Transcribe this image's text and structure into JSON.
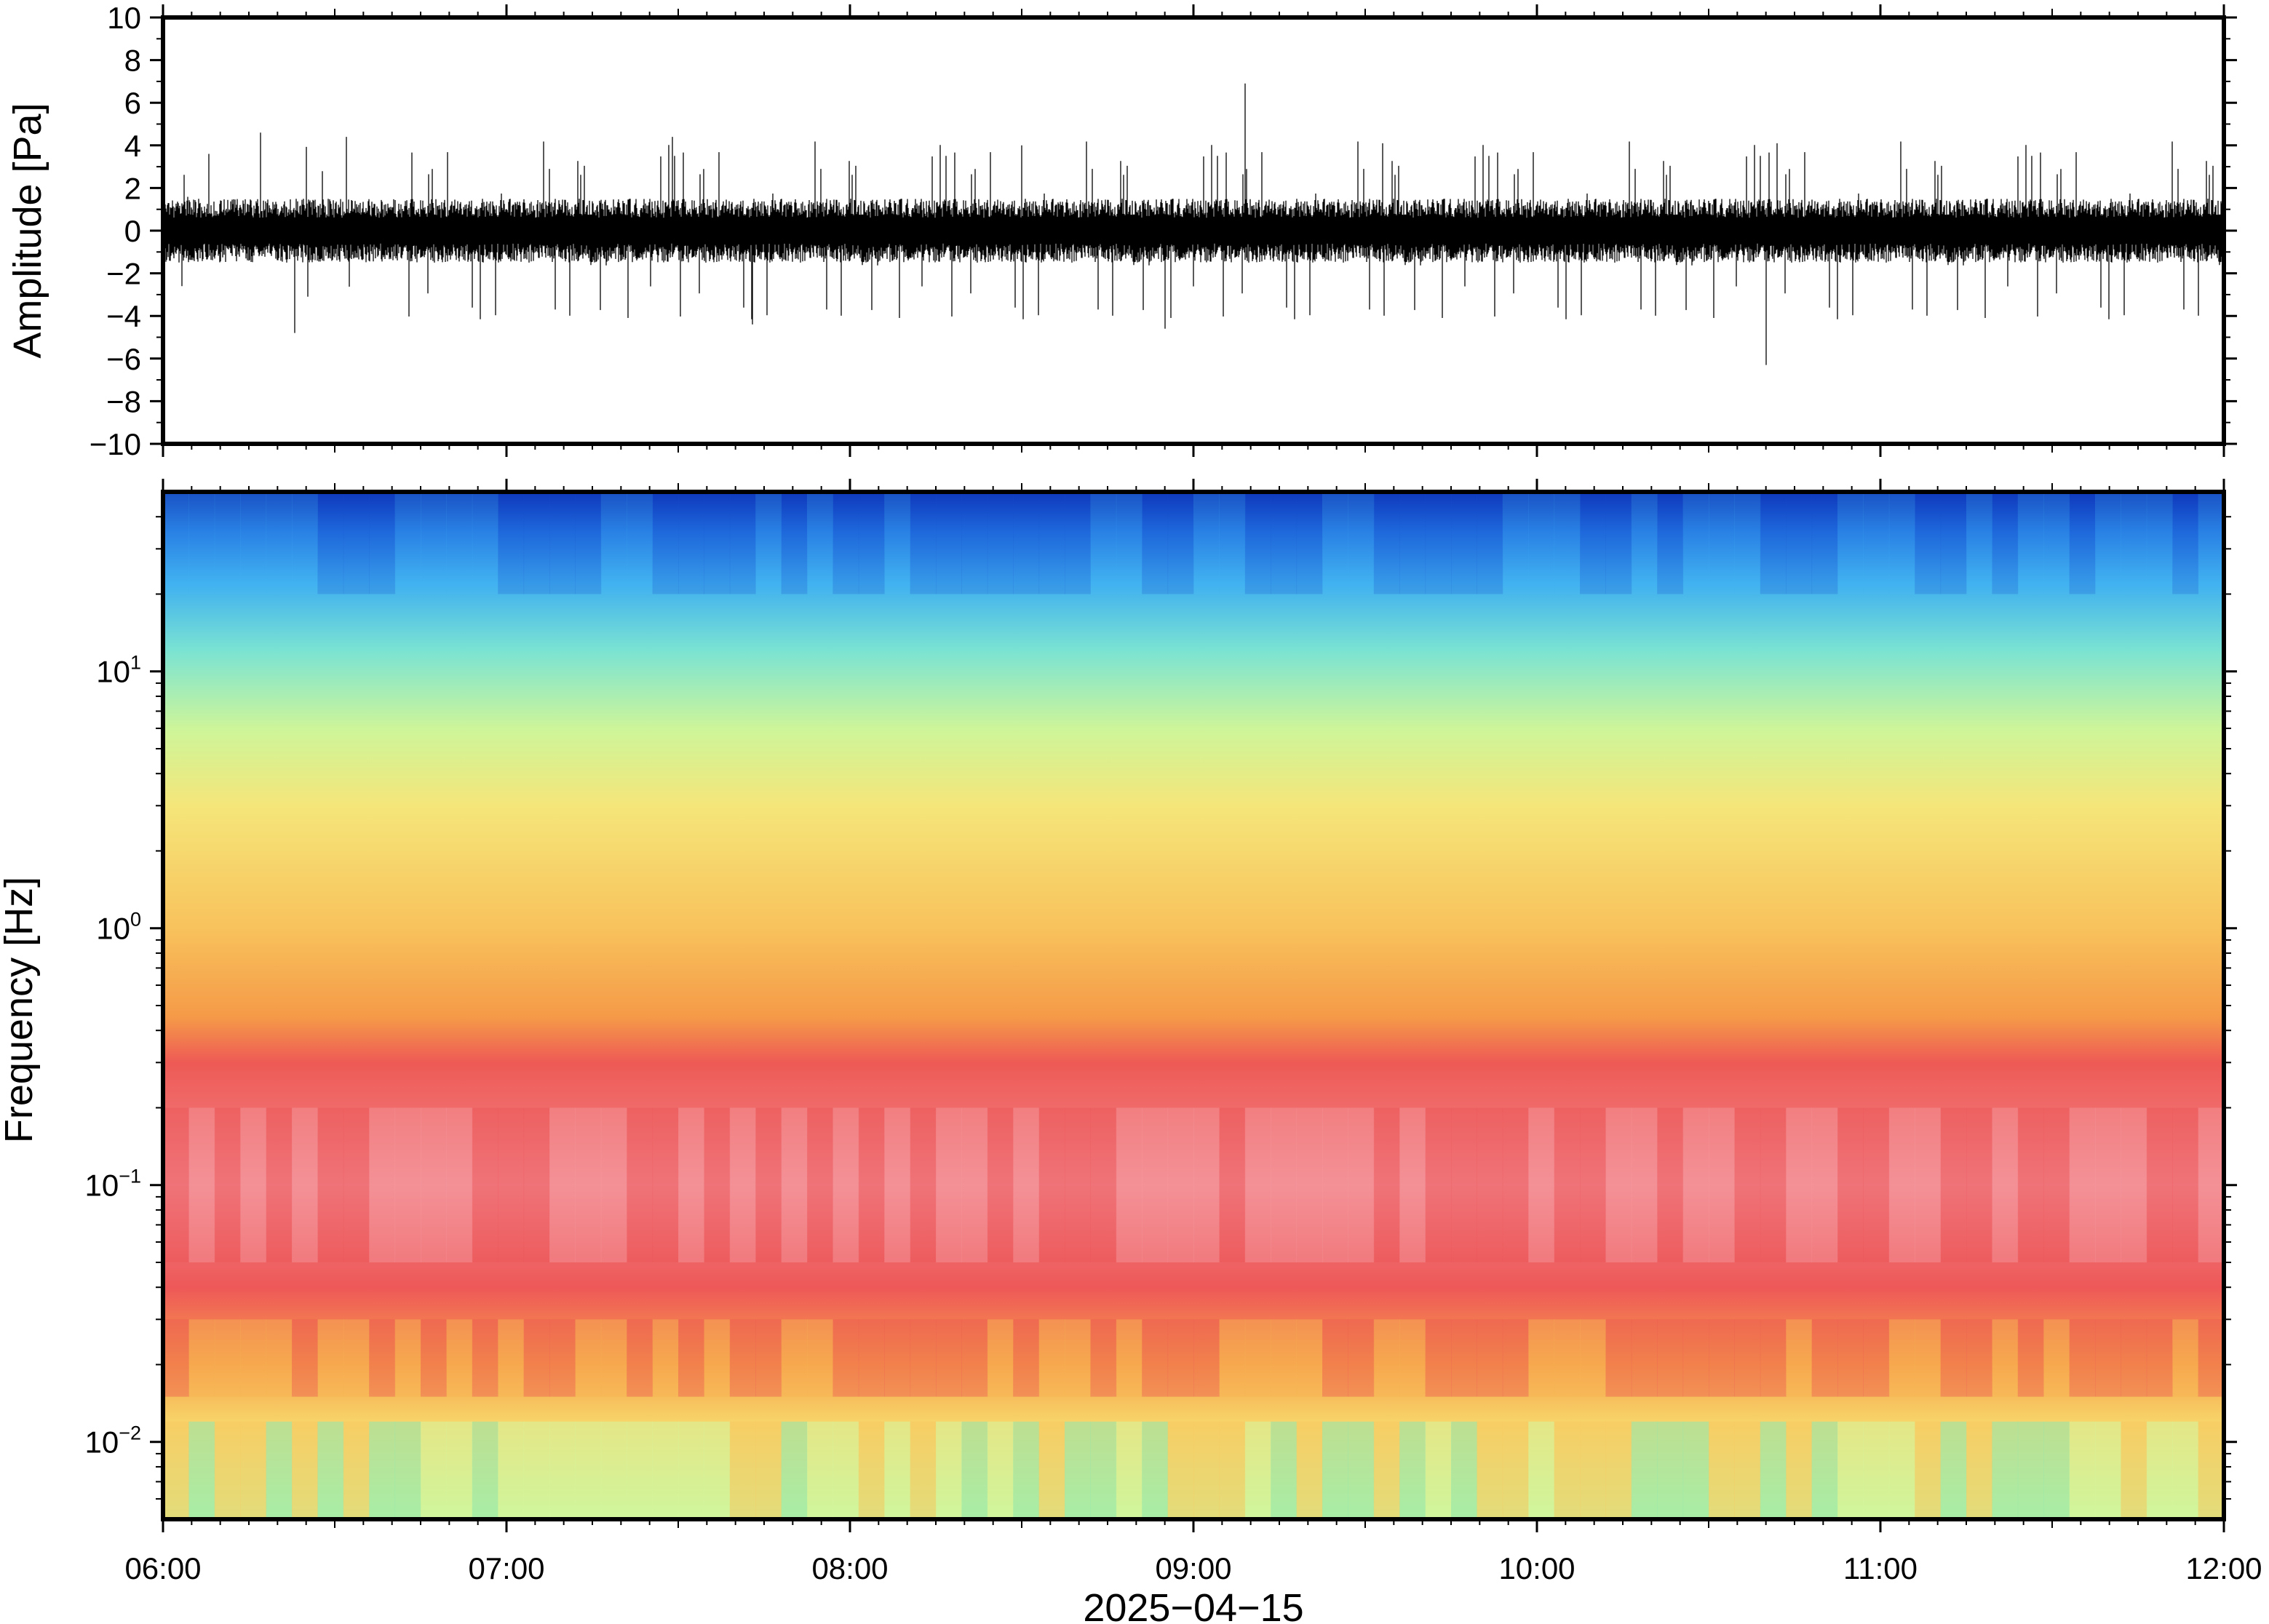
{
  "chart_data": [
    {
      "type": "line",
      "ylabel": "Amplitude [Pa]",
      "ylim": [
        -10,
        10
      ],
      "yticks": [
        "10",
        "8",
        "6",
        "4",
        "2",
        "0",
        "−2",
        "−4",
        "−6",
        "−8",
        "−10"
      ],
      "xlim": [
        "06:00",
        "12:00"
      ],
      "grid": false,
      "series": [
        {
          "color": "#000000",
          "envelope_peaks": [
            {
              "time": "06:08",
              "value": 3.6
            },
            {
              "time": "06:17",
              "value": 4.6
            },
            {
              "time": "06:23",
              "value": -4.8
            },
            {
              "time": "06:32",
              "value": 4.4
            },
            {
              "time": "07:29",
              "value": 4.4
            },
            {
              "time": "07:43",
              "value": -4.4
            },
            {
              "time": "08:30",
              "value": 4.0
            },
            {
              "time": "08:55",
              "value": -4.6
            },
            {
              "time": "09:09",
              "value": 6.9
            },
            {
              "time": "09:33",
              "value": 4.1
            },
            {
              "time": "10:40",
              "value": -6.3
            },
            {
              "time": "10:42",
              "value": 4.1
            }
          ]
        }
      ]
    },
    {
      "type": "heatmap",
      "ylabel": "Frequency [Hz]",
      "xlabel": "2025−04−15",
      "yscale": "log",
      "ylim": [
        0.005,
        50
      ],
      "yticks": [
        {
          "base": "10",
          "exp": "1",
          "value": 10
        },
        {
          "base": "10",
          "exp": "0",
          "value": 1
        },
        {
          "base": "10",
          "exp": "−1",
          "value": 0.1
        },
        {
          "base": "10",
          "exp": "−2",
          "value": 0.01
        }
      ],
      "xticks": [
        "06:00",
        "07:00",
        "08:00",
        "09:00",
        "10:00",
        "11:00",
        "12:00"
      ],
      "xlim": [
        "06:00",
        "12:00"
      ],
      "colormap_stops": [
        {
          "frequency": 50,
          "color": "#0a2fb5"
        },
        {
          "frequency": 35,
          "color": "#1f6fe0"
        },
        {
          "frequency": 22,
          "color": "#3fb0f0"
        },
        {
          "frequency": 12,
          "color": "#7be3d2"
        },
        {
          "frequency": 6,
          "color": "#cdf59a"
        },
        {
          "frequency": 3,
          "color": "#f5e67a"
        },
        {
          "frequency": 1,
          "color": "#f8c25c"
        },
        {
          "frequency": 0.45,
          "color": "#f59a48"
        },
        {
          "frequency": 0.3,
          "color": "#ee5a55"
        },
        {
          "frequency": 0.1,
          "color": "#f2868c"
        },
        {
          "frequency": 0.04,
          "color": "#ee5858"
        },
        {
          "frequency": 0.02,
          "color": "#f7a04a"
        },
        {
          "frequency": 0.012,
          "color": "#f7d46a"
        },
        {
          "frequency": 0.005,
          "color": "#c9f59a"
        }
      ]
    }
  ]
}
